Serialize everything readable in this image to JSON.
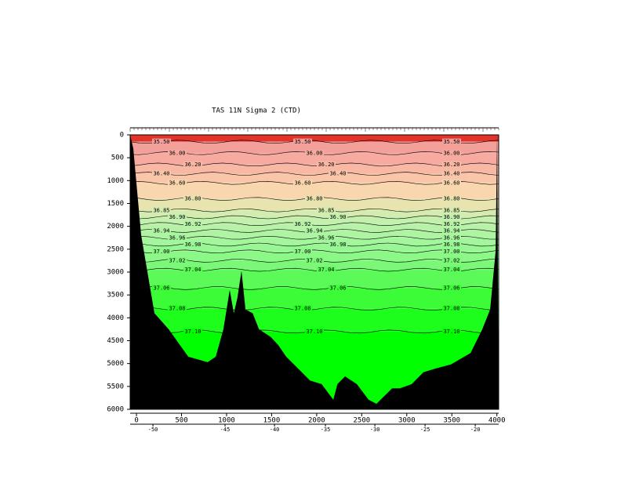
{
  "chart_data": {
    "type": "contour-section",
    "title": "TAS 11N Sigma 2 (CTD)",
    "xlim": [
      -70,
      4020
    ],
    "xticks": [
      0,
      500,
      1000,
      1500,
      2000,
      2500,
      3000,
      3500,
      4000
    ],
    "ylim": [
      0,
      6000
    ],
    "yticks": [
      0,
      500,
      1000,
      1500,
      2000,
      2500,
      3000,
      3500,
      4000,
      4500,
      5000,
      5500,
      6000
    ],
    "y_reversed": true,
    "lon_ticks": [
      {
        "lon": -50,
        "km": 183
      },
      {
        "lon": -45,
        "km": 983
      },
      {
        "lon": -40,
        "km": 1532
      },
      {
        "lon": -35,
        "km": 2097
      },
      {
        "lon": -30,
        "km": 2646
      },
      {
        "lon": -25,
        "km": 3203
      },
      {
        "lon": -20,
        "km": 3760
      }
    ],
    "contours": [
      {
        "value": 35.5,
        "label": "35.50",
        "depth": 150,
        "color": "#f4a09a"
      },
      {
        "value": 36,
        "label": "36.00",
        "depth": 400,
        "color": "#f6aaa0"
      },
      {
        "value": 36.2,
        "label": "36.20",
        "depth": 650,
        "color": "#f8b8a4"
      },
      {
        "value": 36.4,
        "label": "36.40",
        "depth": 850,
        "color": "#fac6aa"
      },
      {
        "value": 36.6,
        "label": "36.60",
        "depth": 1050,
        "color": "#f8d6ae"
      },
      {
        "value": 36.8,
        "label": "36.80",
        "depth": 1400,
        "color": "#e8e4b0"
      },
      {
        "value": 36.85,
        "label": "36.85",
        "depth": 1650,
        "color": "#d4ecb0"
      },
      {
        "value": 36.9,
        "label": "36.90",
        "depth": 1800,
        "color": "#c4f0ae"
      },
      {
        "value": 36.92,
        "label": "36.92",
        "depth": 1950,
        "color": "#b8f2a8"
      },
      {
        "value": 36.94,
        "label": "36.94",
        "depth": 2100,
        "color": "#aef4a2"
      },
      {
        "value": 36.96,
        "label": "36.96",
        "depth": 2250,
        "color": "#a4f69c"
      },
      {
        "value": 36.98,
        "label": "36.98",
        "depth": 2400,
        "color": "#98f694"
      },
      {
        "value": 37,
        "label": "37.00",
        "depth": 2550,
        "color": "#8cf888"
      },
      {
        "value": 37.02,
        "label": "37.02",
        "depth": 2750,
        "color": "#7cf878"
      },
      {
        "value": 37.04,
        "label": "37.04",
        "depth": 2950,
        "color": "#5cfa58"
      },
      {
        "value": 37.06,
        "label": "37.06",
        "depth": 3350,
        "color": "#3cfc38"
      },
      {
        "value": 37.08,
        "label": "37.08",
        "depth": 3800,
        "color": "#1efe1c"
      },
      {
        "value": 37.1,
        "label": "37.10",
        "depth": 4300,
        "color": "#00ff00"
      }
    ],
    "surface_color": "#e2342a",
    "bottom": {
      "color": "#000000",
      "km": [
        -70,
        -35,
        52,
        200,
        357,
        575,
        790,
        880,
        965,
        1035,
        1080,
        1120,
        1166,
        1210,
        1290,
        1360,
        1490,
        1575,
        1662,
        1795,
        1925,
        2055,
        2185,
        2230,
        2315,
        2446,
        2576,
        2663,
        2750,
        2837,
        2924,
        3055,
        3185,
        3316,
        3490,
        3708,
        3838,
        3925,
        3986,
        4003
      ],
      "depth": [
        0,
        300,
        2190,
        3900,
        4250,
        4850,
        4970,
        4850,
        4250,
        3390,
        3900,
        3570,
        2970,
        3820,
        3900,
        4250,
        4420,
        4600,
        4850,
        5110,
        5370,
        5450,
        5790,
        5450,
        5280,
        5450,
        5790,
        5880,
        5710,
        5540,
        5540,
        5450,
        5190,
        5110,
        5020,
        4770,
        4250,
        3820,
        2540,
        0
      ]
    }
  }
}
